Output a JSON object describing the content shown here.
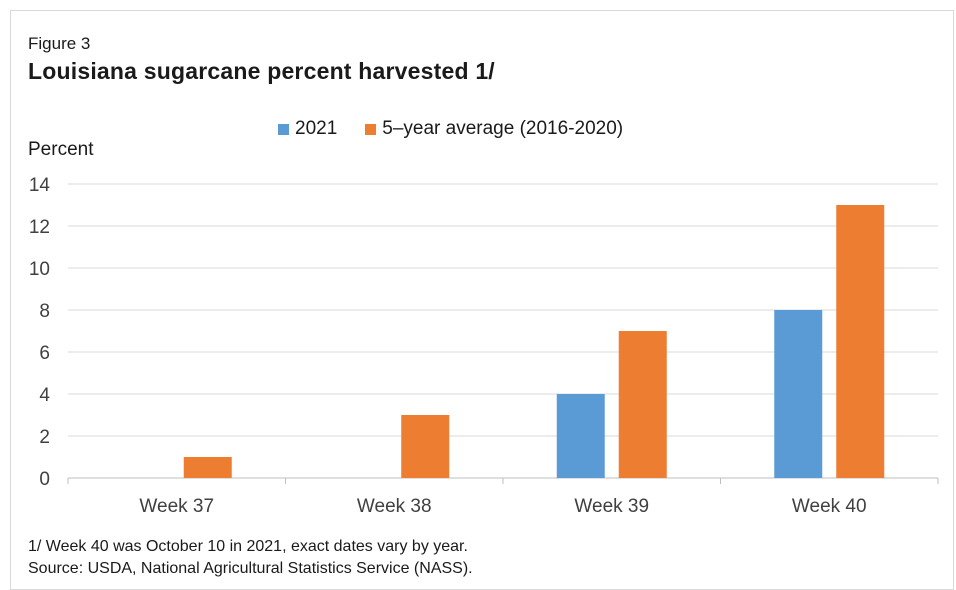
{
  "figure_label": "Figure 3",
  "chart_data": {
    "type": "bar",
    "title": "Louisiana sugarcane percent harvested 1/",
    "ylabel": "Percent",
    "xlabel": "",
    "categories": [
      "Week 37",
      "Week 38",
      "Week 39",
      "Week 40"
    ],
    "series": [
      {
        "name": "2021",
        "values": [
          0,
          0,
          4,
          8
        ],
        "color": "#5b9bd5"
      },
      {
        "name": "5–year average (2016-2020)",
        "values": [
          1,
          3,
          7,
          13
        ],
        "color": "#ed7d31"
      }
    ],
    "ylim": [
      0,
      14
    ],
    "yticks": [
      0,
      2,
      4,
      6,
      8,
      10,
      12,
      14
    ],
    "grid": true,
    "legend_position": "top"
  },
  "footnotes": [
    "1/ Week 40 was October 10 in 2021, exact dates vary by year.",
    "Source: USDA, National Agricultural Statistics Service (NASS)."
  ]
}
